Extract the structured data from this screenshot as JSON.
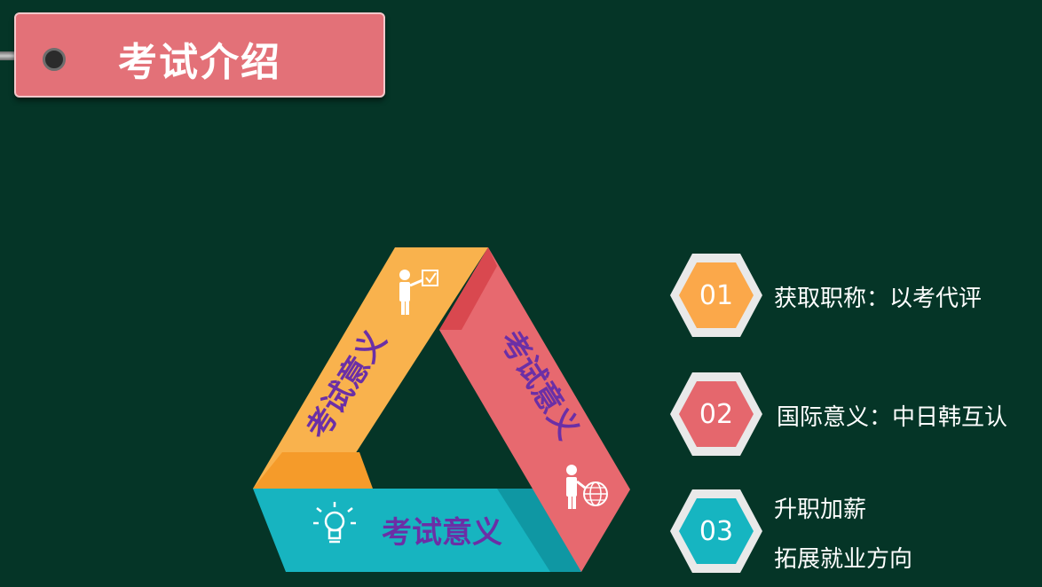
{
  "header": {
    "title": "考试介绍"
  },
  "triangle": {
    "left_label": "考试意义",
    "right_label": "考试意义",
    "bottom_label": "考试意义",
    "colors": {
      "left": "#f9b24d",
      "right": "#e7696f",
      "bottom": "#17b4c0",
      "label": "#6b2fa6"
    },
    "icons": [
      "presenter-checklist-icon",
      "presenter-globe-icon",
      "lightbulb-icon"
    ]
  },
  "items": [
    {
      "num": "01",
      "text": "获取职称：以考代评",
      "color": "#fba84a"
    },
    {
      "num": "02",
      "text": "国际意义：中日韩互认",
      "color": "#e5676d"
    },
    {
      "num": "03",
      "text": "升职加薪",
      "text2": "拓展就业方向",
      "color": "#16b5c1"
    }
  ]
}
